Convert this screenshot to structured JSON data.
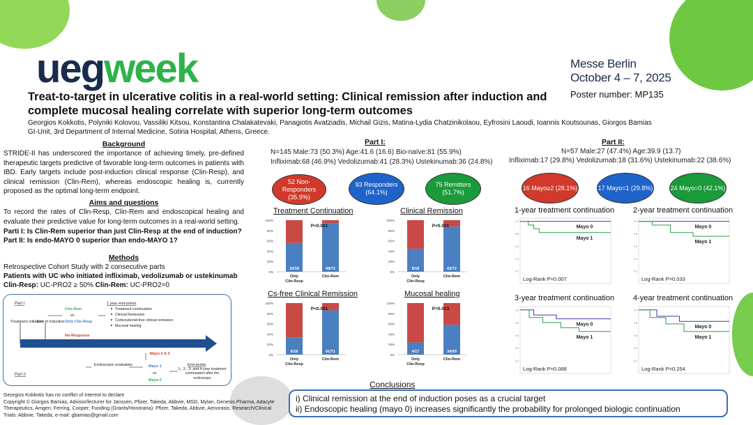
{
  "header": {
    "logo_ueg": "ueg",
    "logo_week": "week",
    "venue_line1": "Messe Berlin",
    "venue_line2": "October 4 – 7, 2025",
    "poster_number": "Poster number: MP135",
    "title": "Treat-to-target in ulcerative colitis in a real-world setting: Clinical remission after induction and complete mucosal healing correlate with superior long-term outcomes",
    "authors": "Georgios Kokkotis, Polyniki Kolovou, Vassiliki Kitsou, Konstantina Chalakatevaki, Panagiotis Avatziadis, Michail Gizis, Matina-Lydia Chatzinikolaou, Eyfrosini Laoudi, Ioannis Koutsounas, Giorgos Bamias",
    "affiliation": "GI-Unit, 3rd Department of Internal Medicine, Sotiria Hospital, Athens, Greece."
  },
  "background": {
    "heading": "Background",
    "text": "STRIDE-II has underscored the importance of achieving timely, pre-defined therapeutic targets predictive of favorable long-term outcomes in patients with IBD. Early targets include post-induction clinical response (Clin-Resp), and clinical remission (Clin-Rem), whereas endoscopic healing is, currently proposed as the optimal long-term endpoint."
  },
  "aims": {
    "heading": "Aims and questions",
    "text": "To record the rates of Clin-Resp, Clin-Rem and endoscopical healing and evaluate their predictive value for long-term outcomes in a real-world setting.",
    "q1": "Parti I: Is Clin-Rem superior than just Clin-Resp at the end of induction?",
    "q2": "Part II: Is endo-MAYO 0 superior than endo-MAYO 1?"
  },
  "methods": {
    "heading": "Methods",
    "line1": "Retrospective Cohort Study with 2 consecutive parts",
    "line2": "Patients with UC who initiated infliximab, vedolizumab or ustekinumab",
    "clin_resp_label": "Clin-Resp:",
    "clin_resp_def": " UC-PRO2 ≥ 50%",
    "clin_rem_label": "Clin-Rem:",
    "clin_rem_def": " UC-PRO2=0"
  },
  "flow": {
    "part1": "Part I",
    "part2": "Part II",
    "treatment_initiation": "Treatment initiation",
    "end_induction": "End of induction",
    "clin_rem": "Clin-Rem",
    "vs1": "vs",
    "only_clin_resp": "Only Clin-Resp",
    "no_response": "No-Response",
    "endpoints_h": "1 year end-points",
    "ep1": "Treatment continuation",
    "ep2": "Clinical Remission",
    "ep3": "Corticosteroid-free clinical remission",
    "ep4": "Mucosal healing",
    "mayo23": "Mayo 2 & 3",
    "endoscopic_eval": "Endoscopic evaluation",
    "mayo1": "Mayo 1",
    "vs2": "vs",
    "mayo0": "Mayo 0",
    "endpoints2_h": "End-points",
    "endpoints2": "1-, 2-, 3- and 4-year treatment continuation after the endoscopy"
  },
  "part1": {
    "heading": "Part I:",
    "stats1": "N=145    Male:73 (50.3%)    Age:41.6 (16.6)    Bio-naïve:81 (55.9%)",
    "stats2": "Infliximab:68 (46.9%)  Vedolizumab:41 (28.3%)   Ustekinumab:36 (24.8%)",
    "bubbles": [
      {
        "text": "52 Non-Responders (35.9%)",
        "color": "#d0392b"
      },
      {
        "text": "93 Responders (64.1%)",
        "color": "#1e63c9"
      },
      {
        "text": "75 Remitters (51.7%)",
        "color": "#1a9a3a"
      }
    ]
  },
  "part2": {
    "heading": "Part II:",
    "stats1": "N=57      Male:27 (47.4%)      Age:39.9 (13.7)",
    "stats2": "Infliximab:17 (29.8%)  Vedolizumab:18 (31.6%)   Ustekinumab:22 (38.6%)",
    "bubbles": [
      {
        "text": "16 Mayo≥2 (28.1%)",
        "color": "#d0392b"
      },
      {
        "text": "17 Mayo=1 (29.8%)",
        "color": "#1e63c9"
      },
      {
        "text": "24 Mayo=0 (42.1%)",
        "color": "#1a9a3a"
      }
    ]
  },
  "chart_data": [
    {
      "type": "bar",
      "title": "Treatment Continuation",
      "categories": [
        "Only Clin-Resp",
        "Clin-Rem"
      ],
      "labels": [
        "10/18",
        "68/72"
      ],
      "values": [
        55.6,
        94.4
      ],
      "pvalue": "P<0.001",
      "yticks": [
        "0%",
        "20%",
        "40%",
        "60%",
        "80%",
        "100%"
      ],
      "colors": {
        "yes": "#4a7fc1",
        "no": "#c94a45"
      }
    },
    {
      "type": "bar",
      "title": "Clinical Remission",
      "categories": [
        "Only Clin-Resp",
        "Clin-Rem"
      ],
      "labels": [
        "8/18",
        "63/72"
      ],
      "values": [
        44.4,
        87.5
      ],
      "pvalue": "P<0.001",
      "yticks": [
        "0%",
        "20%",
        "40%",
        "60%",
        "80%",
        "100%"
      ],
      "colors": {
        "yes": "#4a7fc1",
        "no": "#c94a45"
      }
    },
    {
      "type": "bar",
      "title": "Cs-free Clinical Remission",
      "categories": [
        "Only Clin-Resp",
        "Clin-Rem"
      ],
      "labels": [
        "6/18",
        "61/71"
      ],
      "values": [
        33.3,
        85.9
      ],
      "pvalue": "P<0.001",
      "yticks": [
        "0%",
        "20%",
        "40%",
        "60%",
        "80%",
        "100%"
      ],
      "colors": {
        "yes": "#4a7fc1",
        "no": "#c94a45"
      }
    },
    {
      "type": "bar",
      "title": "Mucosal healing",
      "categories": [
        "Only Clin-Resp",
        "Clin-Rem"
      ],
      "labels": [
        "4/17",
        "34/59"
      ],
      "values": [
        23.5,
        57.6
      ],
      "pvalue": "P=0.013",
      "yticks": [
        "0%",
        "20%",
        "40%",
        "60%",
        "80%",
        "100%"
      ],
      "colors": {
        "yes": "#4a7fc1",
        "no": "#c94a45"
      }
    },
    {
      "type": "line",
      "title": "1-year treatment continuation",
      "logrank": "Log-Rank P=0.007",
      "series": [
        {
          "name": "Mayo 0",
          "values": [
            [
              0,
              1
            ],
            [
              2000,
              1
            ]
          ]
        },
        {
          "name": "Mayo 1",
          "values": [
            [
              0,
              1
            ],
            [
              180,
              1
            ],
            [
              180,
              0.94
            ],
            [
              300,
              0.94
            ],
            [
              300,
              0.88
            ],
            [
              420,
              0.88
            ],
            [
              420,
              0.82
            ],
            [
              2000,
              0.82
            ]
          ]
        }
      ]
    },
    {
      "type": "line",
      "title": "2-year treatment continuation",
      "logrank": "Log-Rank P=0.033",
      "series": [
        {
          "name": "Mayo 0",
          "values": [
            [
              0,
              1
            ],
            [
              2000,
              1
            ]
          ]
        },
        {
          "name": "Mayo 1",
          "values": [
            [
              0,
              1
            ],
            [
              300,
              1
            ],
            [
              300,
              0.94
            ],
            [
              700,
              0.94
            ],
            [
              700,
              0.82
            ],
            [
              1200,
              0.82
            ],
            [
              1200,
              0.76
            ],
            [
              2000,
              0.76
            ]
          ]
        }
      ]
    },
    {
      "type": "line",
      "title": "3-year treatment continuation",
      "logrank": "Log-Rank P=0.088",
      "series": [
        {
          "name": "Mayo 0",
          "values": [
            [
              0,
              1
            ],
            [
              300,
              1
            ],
            [
              300,
              0.92
            ],
            [
              800,
              0.92
            ],
            [
              800,
              0.86
            ],
            [
              2000,
              0.86
            ]
          ]
        },
        {
          "name": "Mayo 1",
          "values": [
            [
              0,
              1
            ],
            [
              200,
              1
            ],
            [
              200,
              0.88
            ],
            [
              500,
              0.88
            ],
            [
              500,
              0.8
            ],
            [
              900,
              0.8
            ],
            [
              900,
              0.72
            ],
            [
              1300,
              0.72
            ],
            [
              1300,
              0.66
            ],
            [
              2000,
              0.66
            ]
          ]
        }
      ]
    },
    {
      "type": "line",
      "title": "4-year treatment continuation",
      "logrank": "Log-Rank P=0.254",
      "series": [
        {
          "name": "Mayo 0",
          "values": [
            [
              0,
              1
            ],
            [
              400,
              1
            ],
            [
              400,
              0.9
            ],
            [
              900,
              0.9
            ],
            [
              900,
              0.82
            ],
            [
              2000,
              0.82
            ]
          ]
        },
        {
          "name": "Mayo 1",
          "values": [
            [
              0,
              1
            ],
            [
              250,
              1
            ],
            [
              250,
              0.88
            ],
            [
              600,
              0.88
            ],
            [
              600,
              0.78
            ],
            [
              1000,
              0.78
            ],
            [
              1000,
              0.66
            ],
            [
              2000,
              0.66
            ]
          ]
        }
      ]
    }
  ],
  "conclusions": {
    "heading": "Conclusions",
    "line1": "i) Clinical remission at the end of induction poses as a crucial target",
    "line2": "ii) Endoscopic healing (mayo 0) increases significantly the probability for prolonged biologic continuation"
  },
  "footer": {
    "line1": "Georgios Kokkotis has no conflict of interest to declare",
    "line2": "Copyright © Giorgos Bamias, Advisor/lecturer for Janssen, Pfizer, Takeda, Abbvie, MSD, Mylan, Genesis Pharma, Adacyte Therapeutics, Amgen, Ferring, Cooper; Funding (Grants/Honoraria): Pfizer, Takeda, Abbvie, Aenorasis; Research/Clinical Trials: Abbvie, Takeda, e-mail: gbamias@gmail.com"
  }
}
